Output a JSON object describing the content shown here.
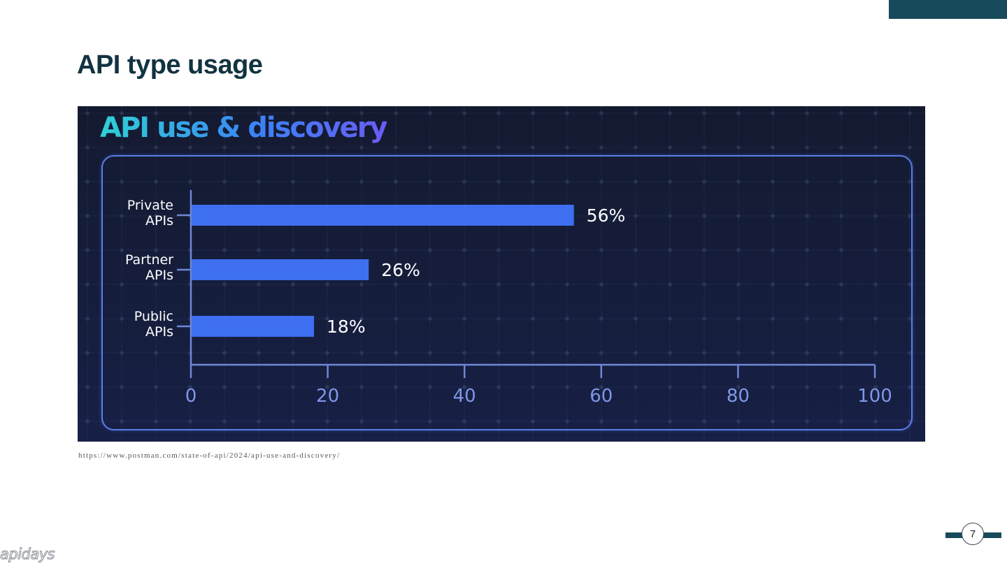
{
  "slide": {
    "title": "API type usage",
    "source_url": "https://www.postman.com/state-of-api/2024/api-use-and-discovery/",
    "logo_text": "apidays",
    "page_number": "7"
  },
  "panel": {
    "heading": "API use & discovery"
  },
  "colors": {
    "bar": "#3d6ff0",
    "axis": "#6f87d6",
    "tick_label": "#7f97e8",
    "text": "#ffffff",
    "accent": "#174a5a"
  },
  "chart_data": {
    "type": "bar",
    "orientation": "horizontal",
    "title": "API use & discovery",
    "categories": [
      [
        "Private",
        "APIs"
      ],
      [
        "Partner",
        "APIs"
      ],
      [
        "Public",
        "APIs"
      ]
    ],
    "values": [
      56,
      26,
      18
    ],
    "value_labels": [
      "56%",
      "26%",
      "18%"
    ],
    "xlim": [
      0,
      100
    ],
    "xticks": [
      0,
      20,
      40,
      60,
      80,
      100
    ],
    "xtick_labels": [
      "0",
      "20",
      "40",
      "60",
      "80",
      "100"
    ],
    "xlabel": "",
    "ylabel": "",
    "grid": false
  }
}
